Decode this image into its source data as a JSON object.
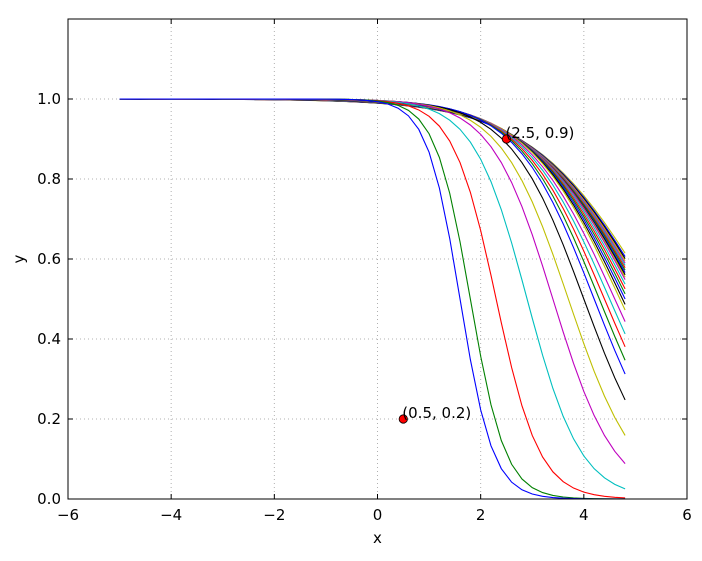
{
  "chart_data": {
    "type": "line",
    "title": "",
    "xlabel": "x",
    "ylabel": "y",
    "xlim": [
      -6,
      6
    ],
    "ylim": [
      0.0,
      1.2
    ],
    "grid": true,
    "x_ticks": [
      -6,
      -4,
      -2,
      0,
      2,
      4,
      6
    ],
    "x_tick_labels": [
      "−6",
      "−4",
      "−2",
      "0",
      "2",
      "4",
      "6"
    ],
    "y_ticks": [
      0.0,
      0.2,
      0.4,
      0.6,
      0.8,
      1.0
    ],
    "y_tick_labels": [
      "0.0",
      "0.2",
      "0.4",
      "0.6",
      "0.8",
      "1.0"
    ],
    "x_range": [
      -5.0,
      4.8
    ],
    "x_step": 0.2,
    "curve_family": {
      "count": 30,
      "centers": [
        1.6,
        1.8,
        2.3,
        2.9,
        3.4,
        3.7,
        4.0,
        4.2,
        4.3,
        4.4,
        4.5,
        4.6,
        4.7,
        4.75,
        4.8,
        4.85,
        4.9,
        4.95,
        5.0,
        5.03,
        5.06,
        5.09,
        5.12,
        5.15,
        5.18,
        5.21,
        5.24,
        5.27,
        5.3,
        5.35
      ],
      "widths": [
        0.32,
        0.34,
        0.42,
        0.52,
        0.6,
        0.66,
        0.72,
        0.76,
        0.79,
        0.82,
        0.85,
        0.88,
        0.91,
        0.93,
        0.95,
        0.97,
        0.99,
        1.01,
        1.03,
        1.05,
        1.07,
        1.09,
        1.1,
        1.11,
        1.12,
        1.13,
        1.14,
        1.15,
        1.16,
        1.18
      ],
      "colors": [
        "#0000ff",
        "#008000",
        "#ff0000",
        "#00bfbf",
        "#bf00bf",
        "#bfbf00",
        "#000000",
        "#0000ff",
        "#008000",
        "#ff0000",
        "#00bfbf",
        "#bf00bf",
        "#bfbf00",
        "#000000",
        "#0000ff",
        "#008000",
        "#ff0000",
        "#00bfbf",
        "#bf00bf",
        "#bfbf00",
        "#000000",
        "#0000ff",
        "#008000",
        "#ff0000",
        "#00bfbf",
        "#bf00bf",
        "#bfbf00",
        "#000000",
        "#0000ff",
        "#bfbf00"
      ]
    },
    "annotations": [
      {
        "x": 0.5,
        "y": 0.2,
        "label": "(0.5, 0.2)",
        "color": "#ff0000"
      },
      {
        "x": 2.5,
        "y": 0.9,
        "label": "(2.5, 0.9)",
        "color": "#ff0000"
      }
    ]
  }
}
